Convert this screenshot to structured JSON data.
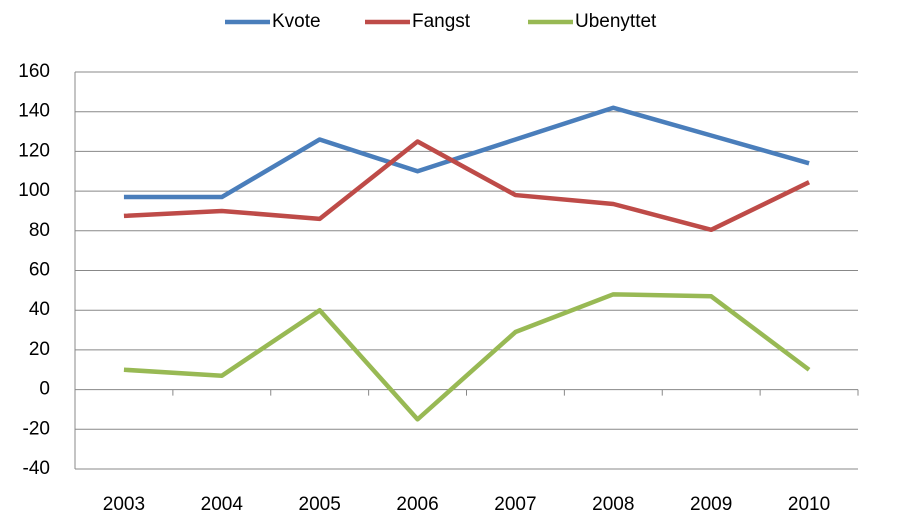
{
  "chart_data": {
    "type": "line",
    "categories": [
      "2003",
      "2004",
      "2005",
      "2006",
      "2007",
      "2008",
      "2009",
      "2010"
    ],
    "series": [
      {
        "name": "Kvote",
        "color": "#4a7ebb",
        "values": [
          97,
          97,
          126,
          110,
          126,
          142,
          128,
          114
        ]
      },
      {
        "name": "Fangst",
        "color": "#be4b48",
        "values": [
          87.5,
          90,
          86,
          125,
          98,
          93.5,
          80.5,
          104.5
        ]
      },
      {
        "name": "Ubenyttet",
        "color": "#98b954",
        "values": [
          10,
          7,
          40,
          -15,
          29,
          48,
          47,
          10
        ]
      }
    ],
    "ylim": [
      -40,
      160
    ],
    "yticks": [
      -40,
      -20,
      0,
      20,
      40,
      60,
      80,
      100,
      120,
      140,
      160
    ],
    "grid": true,
    "legend": "top"
  }
}
